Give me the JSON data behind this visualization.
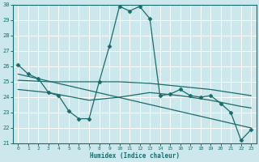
{
  "xlabel": "Humidex (Indice chaleur)",
  "ylabel": "",
  "xlim": [
    -0.5,
    23.5
  ],
  "ylim": [
    21,
    30
  ],
  "yticks": [
    21,
    22,
    23,
    24,
    25,
    26,
    27,
    28,
    29,
    30
  ],
  "xticks": [
    0,
    1,
    2,
    3,
    4,
    5,
    6,
    7,
    8,
    9,
    10,
    11,
    12,
    13,
    14,
    15,
    16,
    17,
    18,
    19,
    20,
    21,
    22,
    23
  ],
  "bg_color": "#cde8ec",
  "line_color": "#1a6b6b",
  "grid_color": "#ffffff",
  "lines": [
    {
      "x": [
        0,
        1,
        2,
        3,
        4,
        5,
        6,
        7,
        8,
        9,
        10,
        11,
        12,
        13,
        14,
        15,
        16,
        17,
        18,
        19,
        20,
        21,
        22,
        23
      ],
      "y": [
        26.1,
        25.5,
        25.2,
        24.3,
        24.1,
        23.1,
        22.6,
        22.6,
        25.0,
        27.3,
        29.9,
        29.6,
        29.9,
        29.1,
        24.1,
        24.2,
        24.5,
        24.1,
        24.0,
        24.1,
        23.6,
        23.0,
        21.2,
        21.9
      ],
      "marker": "D",
      "markersize": 2.5
    },
    {
      "x": [
        0,
        3,
        7,
        10,
        13,
        16,
        19,
        22,
        23
      ],
      "y": [
        25.1,
        25.0,
        25.0,
        25.0,
        24.9,
        24.7,
        24.5,
        24.2,
        24.1
      ],
      "marker": null,
      "markersize": 0
    },
    {
      "x": [
        0,
        3,
        7,
        10,
        13,
        16,
        19,
        22,
        23
      ],
      "y": [
        24.5,
        24.3,
        23.8,
        24.0,
        24.3,
        24.1,
        23.8,
        23.4,
        23.3
      ],
      "marker": null,
      "markersize": 0
    },
    {
      "x": [
        0,
        23
      ],
      "y": [
        25.5,
        22.0
      ],
      "marker": null,
      "markersize": 0
    }
  ]
}
